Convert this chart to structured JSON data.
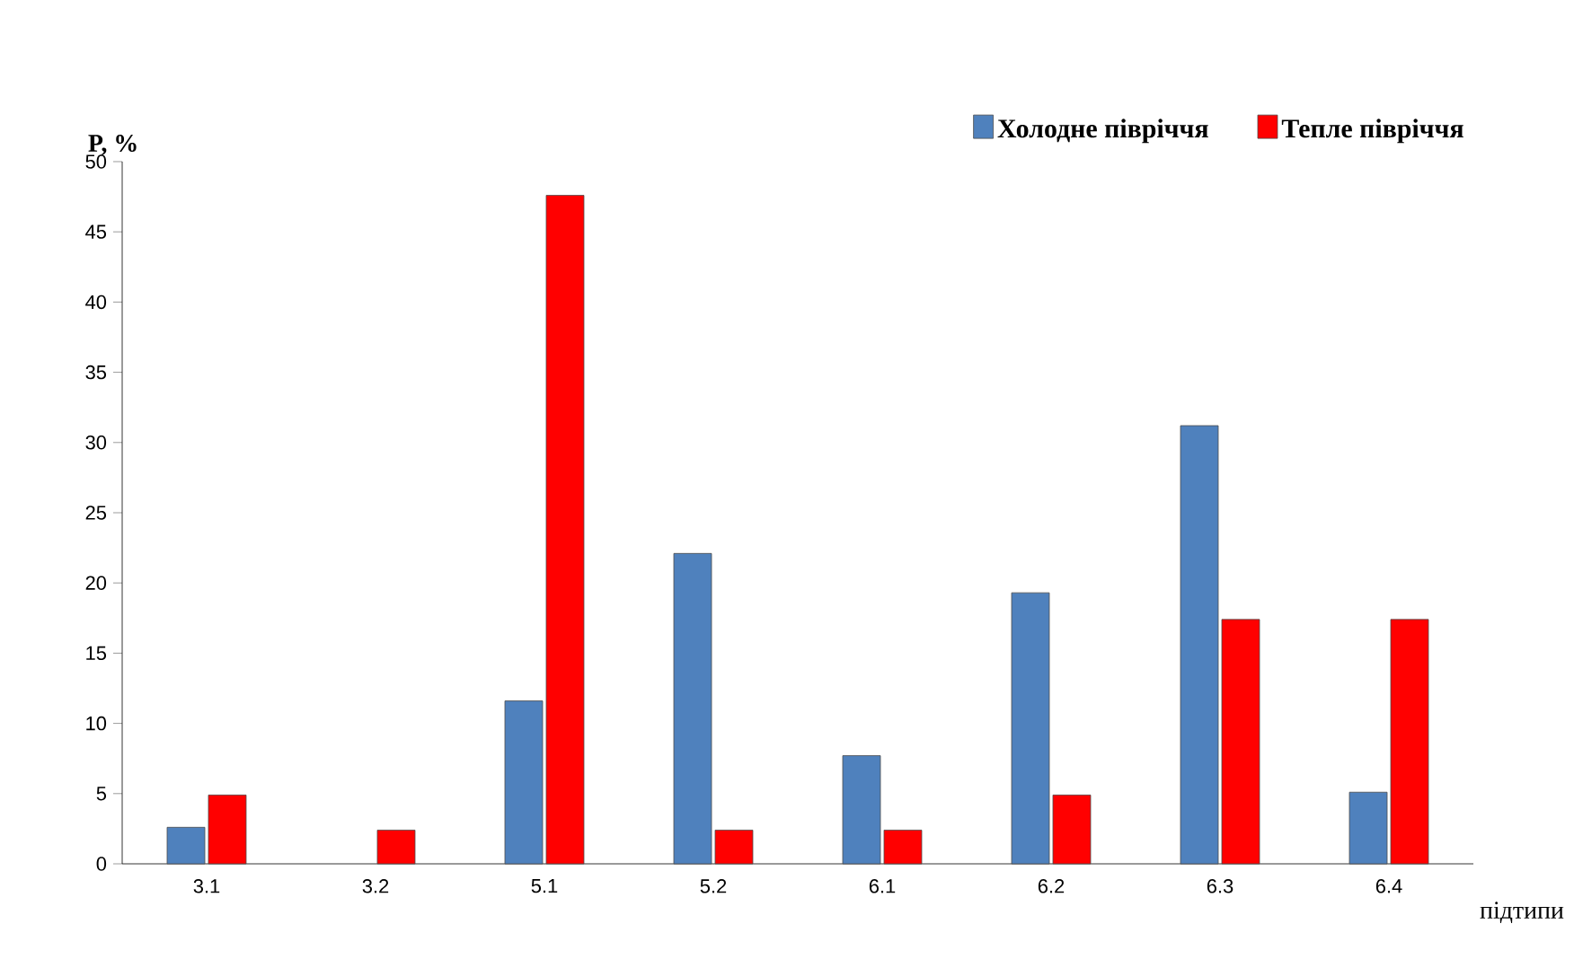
{
  "chart_data": {
    "type": "bar",
    "ylabel": "P, %",
    "xlabel": "підтипи",
    "categories": [
      "3.1",
      "3.2",
      "5.1",
      "5.2",
      "6.1",
      "6.2",
      "6.3",
      "6.4"
    ],
    "series": [
      {
        "name": "Холодне півріччя",
        "color": "#4f81bd",
        "values": [
          2.6,
          null,
          11.6,
          22.1,
          7.7,
          19.3,
          31.2,
          5.1
        ]
      },
      {
        "name": "Тепле півріччя",
        "color": "#ff0000",
        "values": [
          4.9,
          2.4,
          47.6,
          2.4,
          2.4,
          4.9,
          17.4,
          17.4
        ]
      }
    ],
    "ylim": [
      0,
      50
    ],
    "yticks": [
      0,
      5,
      10,
      15,
      20,
      25,
      30,
      35,
      40,
      45,
      50
    ],
    "grid": false,
    "legend": "top right"
  }
}
